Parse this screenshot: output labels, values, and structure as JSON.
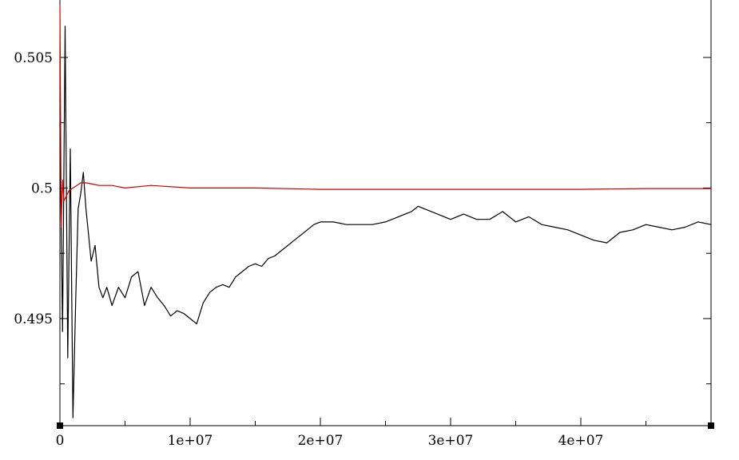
{
  "chart_data": {
    "type": "line",
    "title": "",
    "xlabel": "",
    "ylabel": "",
    "xlim": [
      0,
      50000000
    ],
    "ylim": [
      0.4909,
      0.5072
    ],
    "grid": false,
    "legend": "none",
    "x_ticks": [
      {
        "value": 0,
        "label": "0"
      },
      {
        "value": 10000000,
        "label": "1e+07"
      },
      {
        "value": 20000000,
        "label": "2e+07"
      },
      {
        "value": 30000000,
        "label": "3e+07"
      },
      {
        "value": 40000000,
        "label": "4e+07"
      }
    ],
    "x_minor_step": 5000000,
    "y_ticks": [
      {
        "value": 0.495,
        "label": "0.495"
      },
      {
        "value": 0.5,
        "label": "0.5"
      },
      {
        "value": 0.505,
        "label": "0.505"
      }
    ],
    "y_minor_step": 0.0025,
    "series": [
      {
        "color": "#000000",
        "x": [
          0,
          200000,
          400000,
          600000,
          800000,
          1000000,
          1200000,
          1400000,
          1600000,
          1800000,
          2000000,
          2200000,
          2400000,
          2700000,
          3000000,
          3300000,
          3600000,
          4000000,
          4500000,
          5000000,
          5500000,
          6000000,
          6500000,
          7000000,
          7500000,
          8000000,
          8500000,
          9000000,
          9500000,
          10000000,
          10500000,
          11000000,
          11500000,
          12000000,
          12500000,
          13000000,
          13500000,
          14000000,
          14500000,
          15000000,
          15500000,
          16000000,
          16500000,
          17000000,
          17500000,
          18000000,
          18500000,
          19000000,
          19500000,
          20000000,
          21000000,
          22000000,
          23000000,
          24000000,
          25000000,
          26000000,
          27000000,
          27500000,
          28000000,
          29000000,
          30000000,
          31000000,
          32000000,
          33000000,
          34000000,
          35000000,
          36000000,
          37000000,
          38000000,
          39000000,
          40000000,
          41000000,
          42000000,
          43000000,
          44000000,
          45000000,
          46000000,
          47000000,
          48000000,
          49000000,
          50000000
        ],
        "y": [
          0.5025,
          0.4945,
          0.5062,
          0.4935,
          0.5015,
          0.4912,
          0.4955,
          0.4992,
          0.4998,
          0.5006,
          0.4992,
          0.4982,
          0.4972,
          0.4978,
          0.4962,
          0.4958,
          0.4962,
          0.4955,
          0.4962,
          0.4958,
          0.4966,
          0.4968,
          0.4955,
          0.4962,
          0.4958,
          0.4955,
          0.4951,
          0.4953,
          0.4952,
          0.495,
          0.4948,
          0.4956,
          0.496,
          0.4962,
          0.4963,
          0.4962,
          0.4966,
          0.4968,
          0.497,
          0.4971,
          0.497,
          0.4973,
          0.4974,
          0.4976,
          0.4978,
          0.498,
          0.4982,
          0.4984,
          0.4986,
          0.4987,
          0.4987,
          0.4986,
          0.4986,
          0.4986,
          0.4987,
          0.4989,
          0.4991,
          0.4993,
          0.4992,
          0.499,
          0.4988,
          0.499,
          0.4988,
          0.4988,
          0.4991,
          0.4987,
          0.4989,
          0.4986,
          0.4985,
          0.4984,
          0.4982,
          0.498,
          0.4979,
          0.4983,
          0.4984,
          0.4986,
          0.4985,
          0.4984,
          0.4985,
          0.4987,
          0.4986
        ]
      },
      {
        "color": "#d00000",
        "x": [
          0,
          100000,
          200000,
          300000,
          500000,
          700000,
          1000000,
          1300000,
          1600000,
          2000000,
          2500000,
          3000000,
          4000000,
          5000000,
          7000000,
          10000000,
          15000000,
          20000000,
          25000000,
          30000000,
          35000000,
          40000000,
          45000000,
          50000000
        ],
        "y": [
          0.507,
          0.4985,
          0.5003,
          0.4995,
          0.4997,
          0.4999,
          0.5,
          0.5001,
          0.5002,
          0.5002,
          0.50015,
          0.5001,
          0.5001,
          0.5,
          0.5001,
          0.5,
          0.5,
          0.49995,
          0.49995,
          0.49995,
          0.49995,
          0.49995,
          0.49998,
          0.49998
        ]
      }
    ]
  }
}
